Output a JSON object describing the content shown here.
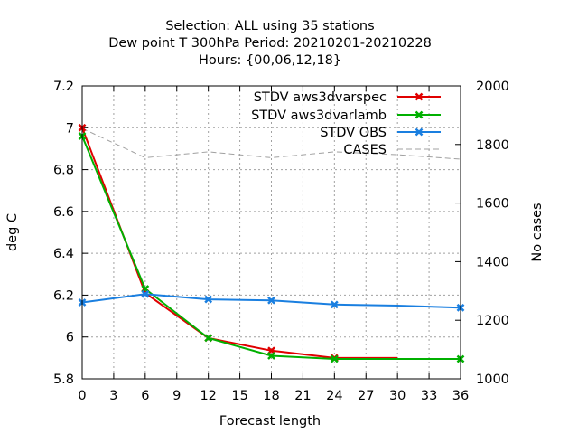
{
  "chart_data": {
    "type": "line",
    "title_lines": [
      "Selection: ALL using    35 stations",
      "Dew point T 300hPa   Period: 20210201-20210228",
      "Hours: {00,06,12,18}"
    ],
    "xlabel": "Forecast length",
    "ylabel": "deg C",
    "y2label": "No cases",
    "xlim": [
      0,
      36
    ],
    "ylim": [
      5.8,
      7.2
    ],
    "y2lim": [
      1000,
      2000
    ],
    "xticks": [
      0,
      3,
      6,
      9,
      12,
      15,
      18,
      21,
      24,
      27,
      30,
      33,
      36
    ],
    "yticks": [
      5.8,
      6,
      6.2,
      6.4,
      6.6,
      6.8,
      7,
      7.2
    ],
    "y2ticks": [
      1000,
      1200,
      1400,
      1600,
      1800,
      2000
    ],
    "grid": true,
    "legend_position": "top-right",
    "series": [
      {
        "name": "STDV aws3dvarspec",
        "color": "#e00000",
        "axis": "y1",
        "x": [
          0,
          6,
          12,
          18,
          24,
          30
        ],
        "y": [
          7.0,
          6.21,
          5.995,
          5.935,
          5.9,
          5.9
        ],
        "marker_x": [
          0,
          6,
          12,
          18,
          24
        ]
      },
      {
        "name": "STDV aws3dvarlamb",
        "color": "#00b000",
        "axis": "y1",
        "x": [
          0,
          6,
          12,
          18,
          24,
          30,
          36
        ],
        "y": [
          6.96,
          6.23,
          5.995,
          5.91,
          5.895,
          5.895,
          5.895
        ],
        "marker_x": [
          0,
          6,
          12,
          18,
          24,
          36
        ]
      },
      {
        "name": "STDV OBS",
        "color": "#1a7fe0",
        "axis": "y1",
        "x": [
          0,
          6,
          12,
          18,
          24,
          30,
          36
        ],
        "y": [
          6.165,
          6.205,
          6.18,
          6.175,
          6.155,
          6.15,
          6.14
        ],
        "marker_x": [
          0,
          6,
          12,
          18,
          24,
          36
        ]
      },
      {
        "name": "CASES",
        "color": "#a0a0a0",
        "axis": "y2",
        "dashed": true,
        "x": [
          0,
          6,
          12,
          18,
          24,
          30,
          36
        ],
        "y": [
          1855,
          1755,
          1775,
          1755,
          1775,
          1765,
          1750
        ]
      }
    ]
  }
}
